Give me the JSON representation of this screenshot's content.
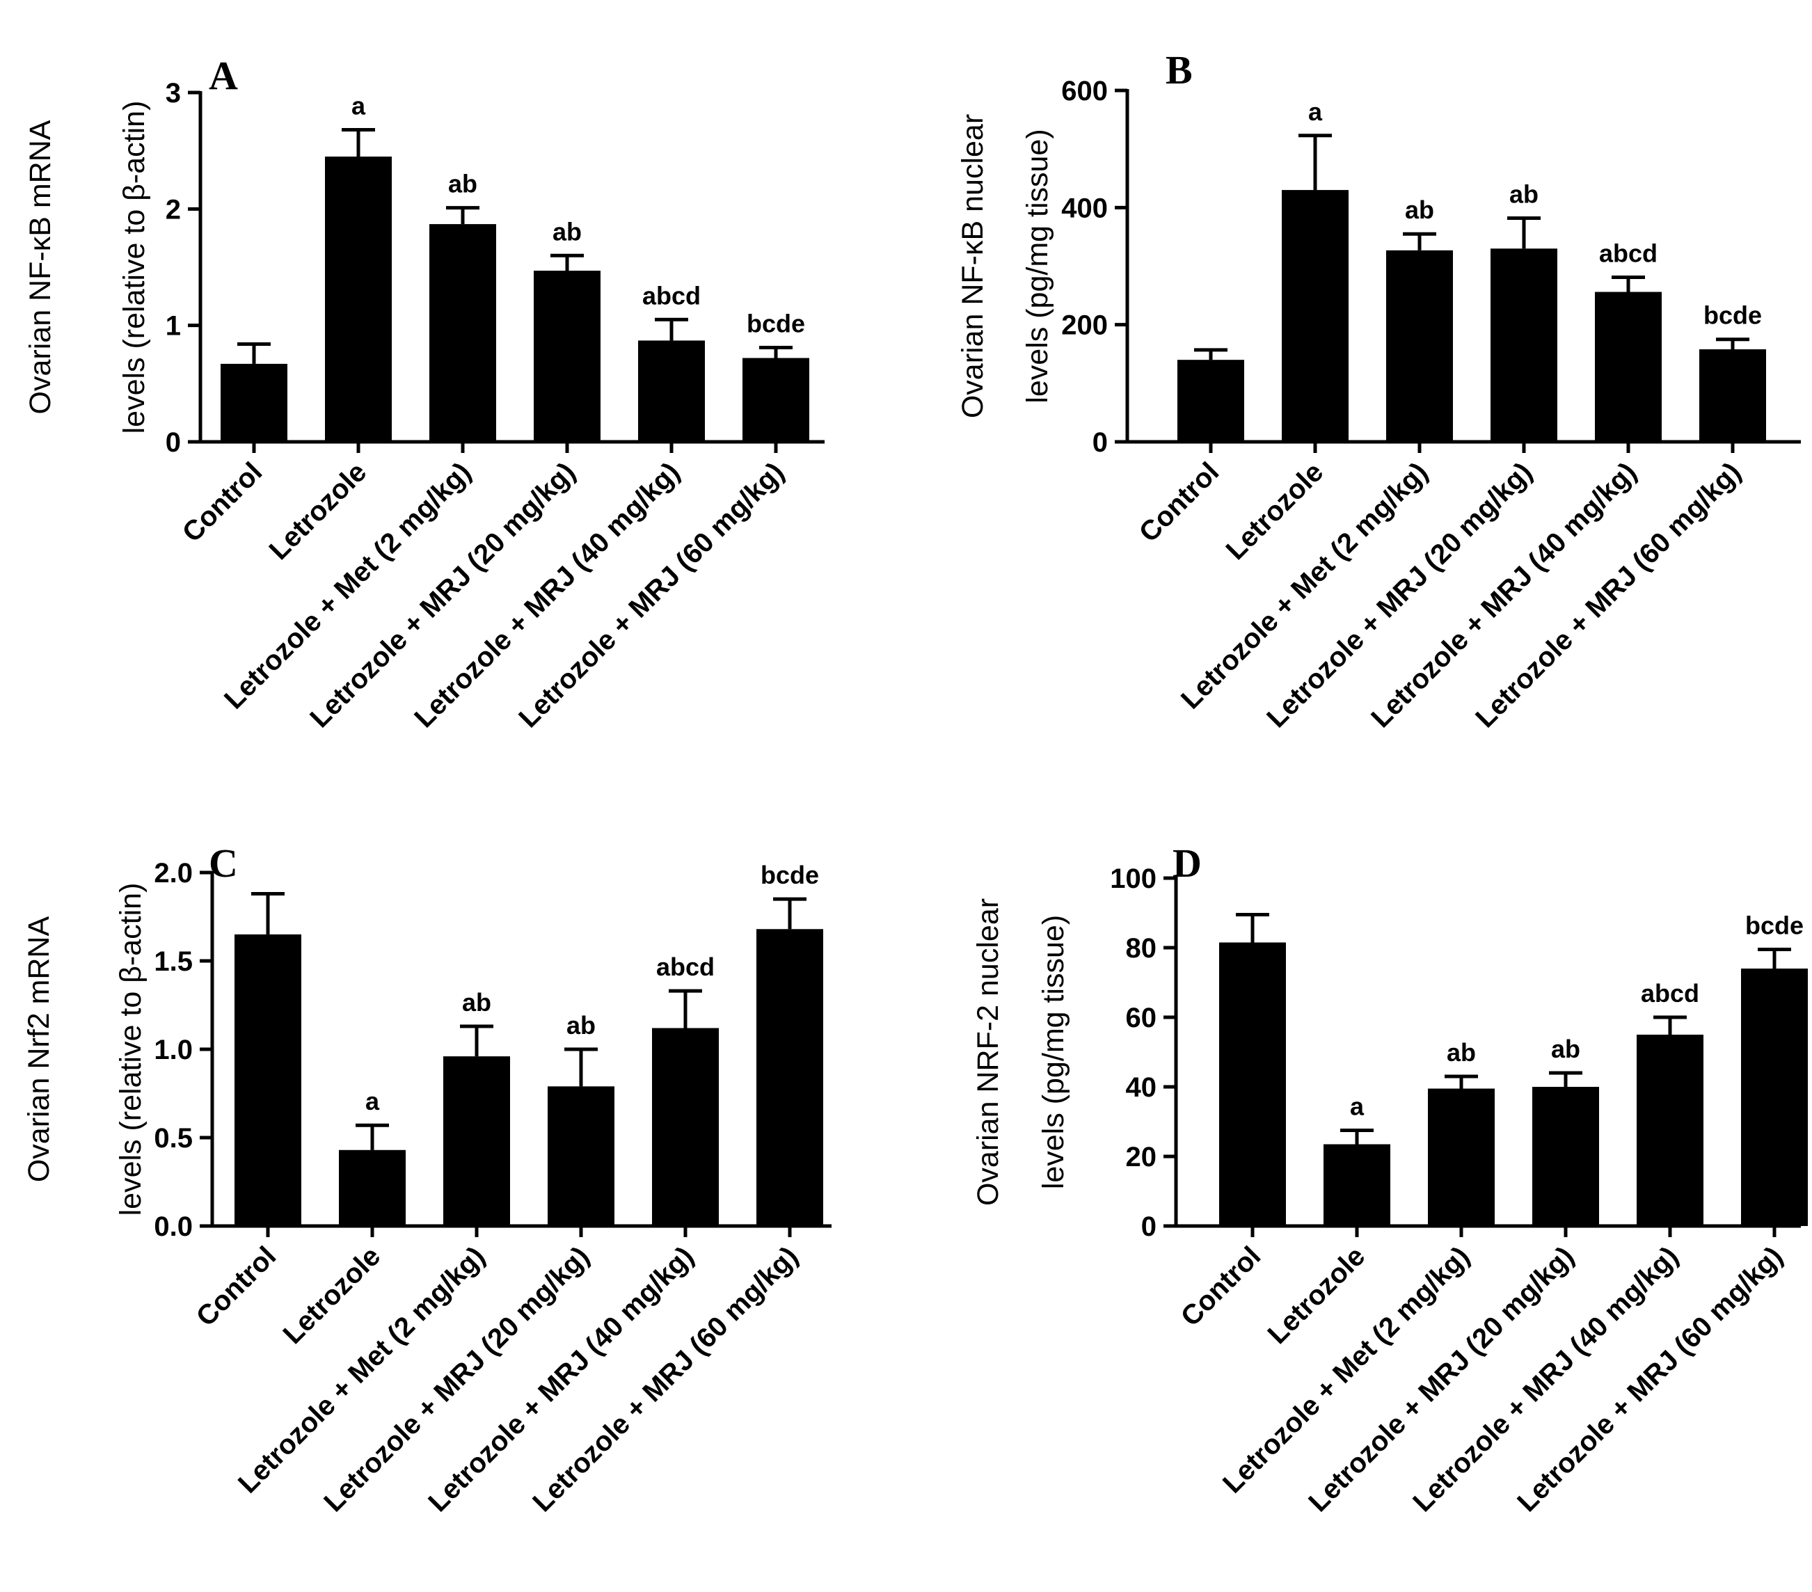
{
  "chart_data": [
    {
      "type": "bar",
      "panel": "A",
      "ylabel_lines": [
        "Ovarian NF-κB mRNA",
        "levels (relative to β-actin)"
      ],
      "ylim": [
        0,
        3
      ],
      "yticks": [
        "0",
        "1",
        "2",
        "3"
      ],
      "categories": [
        "Control",
        "Letrozole",
        "Letrozole + Met (2 mg/kg)",
        "Letrozole + MRJ (20 mg/kg)",
        "Letrozole + MRJ (40 mg/kg)",
        "Letrozole + MRJ (60 mg/kg)"
      ],
      "values": [
        0.67,
        2.45,
        1.87,
        1.47,
        0.87,
        0.72
      ],
      "errors": [
        0.17,
        0.23,
        0.14,
        0.13,
        0.18,
        0.09
      ],
      "annotations": [
        "",
        "a",
        "ab",
        "ab",
        "abcd",
        "bcde"
      ]
    },
    {
      "type": "bar",
      "panel": "B",
      "ylabel_lines": [
        "Ovarian NF-κB nuclear",
        "levels  (pg/mg tissue)"
      ],
      "ylim": [
        0,
        600
      ],
      "yticks": [
        "0",
        "200",
        "400",
        "600"
      ],
      "categories": [
        "Control",
        "Letrozole",
        "Letrozole + Met (2 mg/kg)",
        "Letrozole + MRJ (20 mg/kg)",
        "Letrozole + MRJ (40 mg/kg)",
        "Letrozole + MRJ (60 mg/kg)"
      ],
      "values": [
        140,
        430,
        327,
        330,
        256,
        158
      ],
      "errors": [
        17,
        93,
        28,
        52,
        25,
        17
      ],
      "annotations": [
        "",
        "a",
        "ab",
        "ab",
        "abcd",
        "bcde"
      ]
    },
    {
      "type": "bar",
      "panel": "C",
      "ylabel_lines": [
        "Ovarian Nrf2 mRNA",
        "levels (relative to β-actin)"
      ],
      "ylim": [
        0,
        2.0
      ],
      "yticks": [
        "0.0",
        "0.5",
        "1.0",
        "1.5",
        "2.0"
      ],
      "categories": [
        "Control",
        "Letrozole",
        "Letrozole + Met (2 mg/kg)",
        "Letrozole + MRJ (20 mg/kg)",
        "Letrozole + MRJ (40 mg/kg)",
        "Letrozole + MRJ (60 mg/kg)"
      ],
      "values": [
        1.65,
        0.43,
        0.96,
        0.79,
        1.12,
        1.68
      ],
      "errors": [
        0.23,
        0.14,
        0.17,
        0.21,
        0.21,
        0.17
      ],
      "annotations": [
        "",
        "a",
        "ab",
        "ab",
        "abcd",
        "bcde"
      ]
    },
    {
      "type": "bar",
      "panel": "D",
      "ylabel_lines": [
        "Ovarian NRF-2 nuclear",
        "levels  (pg/mg tissue)"
      ],
      "ylim": [
        0,
        100
      ],
      "yticks": [
        "0",
        "20",
        "40",
        "60",
        "80",
        "100"
      ],
      "categories": [
        "Control",
        "Letrozole",
        "Letrozole + Met (2 mg/kg)",
        "Letrozole + MRJ (20 mg/kg)",
        "Letrozole + MRJ (40 mg/kg)",
        "Letrozole + MRJ (60 mg/kg)"
      ],
      "values": [
        81.5,
        23.5,
        39.5,
        40,
        55,
        74
      ],
      "errors": [
        8,
        4,
        3.5,
        4,
        5,
        5.5
      ],
      "annotations": [
        "",
        "a",
        "ab",
        "ab",
        "abcd",
        "bcde"
      ]
    }
  ]
}
